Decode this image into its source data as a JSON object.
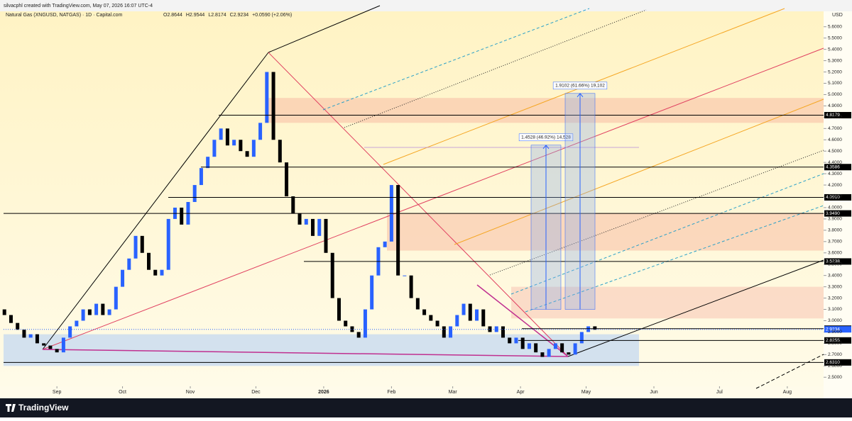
{
  "chart_data": {
    "type": "candlestick",
    "credit": "silvacphl created with TradingView.com, May 07, 2026 16:07 UTC-4",
    "title": "Natural Gas (XNGUSD, NATGAS) · 1D · Capital.com",
    "ohlc_header": [
      "O2.8644",
      "H2.9544",
      "L2.8174",
      "C2.9234",
      "+0.0590 (+2.06%)"
    ],
    "currency": "USD",
    "brand": "TradingView",
    "x": [
      -24,
      -21,
      -18,
      -15,
      -12,
      -9,
      -6,
      -3,
      0,
      3,
      6,
      9,
      12,
      15,
      18,
      21,
      24,
      27,
      30,
      33,
      36,
      39,
      42,
      45,
      48,
      51,
      54,
      57,
      60,
      63,
      66,
      69,
      72,
      75,
      78,
      81,
      84,
      87,
      90,
      93,
      96,
      99,
      102,
      105,
      108,
      111,
      114,
      117,
      120,
      123,
      126,
      129,
      132,
      135,
      138,
      141,
      144,
      147,
      150,
      153,
      156,
      159,
      162,
      165,
      168,
      171,
      174,
      177,
      180,
      183,
      186,
      189,
      192,
      195,
      198,
      201,
      204,
      207,
      210,
      213,
      216,
      219,
      222,
      225,
      228,
      231,
      234,
      237,
      240,
      243,
      246
    ],
    "open": [
      3.1,
      3.05,
      2.98,
      2.92,
      2.85,
      2.88,
      2.8,
      2.78,
      2.75,
      2.72,
      2.85,
      2.95,
      3.0,
      3.1,
      3.05,
      3.15,
      3.05,
      3.1,
      3.3,
      3.45,
      3.55,
      3.75,
      3.6,
      3.45,
      3.4,
      3.45,
      3.9,
      4.0,
      3.85,
      4.05,
      4.2,
      4.35,
      4.45,
      4.6,
      4.7,
      4.55,
      4.6,
      4.5,
      4.45,
      4.6,
      4.75,
      5.2,
      4.6,
      4.4,
      4.1,
      3.95,
      3.85,
      3.9,
      3.75,
      3.9,
      3.6,
      3.2,
      3.0,
      2.95,
      2.9,
      2.85,
      3.1,
      3.4,
      3.65,
      3.7,
      4.2,
      3.4,
      3.4,
      3.2,
      3.1,
      3.05,
      3.0,
      2.95,
      2.85,
      2.95,
      3.05,
      3.15,
      3.0,
      3.1,
      2.95,
      2.9,
      2.95,
      2.85,
      2.8,
      2.85,
      2.75,
      2.8,
      2.72,
      2.68,
      2.75,
      2.8,
      2.72,
      2.7,
      2.8,
      2.9,
      2.95
    ],
    "close": [
      3.05,
      2.98,
      2.92,
      2.85,
      2.88,
      2.8,
      2.78,
      2.75,
      2.72,
      2.85,
      2.95,
      3.0,
      3.1,
      3.05,
      3.15,
      3.05,
      3.1,
      3.3,
      3.45,
      3.55,
      3.75,
      3.6,
      3.45,
      3.4,
      3.45,
      3.9,
      4.0,
      3.85,
      4.05,
      4.2,
      4.35,
      4.45,
      4.6,
      4.7,
      4.55,
      4.6,
      4.5,
      4.45,
      4.6,
      4.75,
      5.2,
      4.6,
      4.4,
      4.1,
      3.95,
      3.85,
      3.9,
      3.75,
      3.9,
      3.6,
      3.2,
      3.0,
      2.95,
      2.9,
      2.85,
      3.1,
      3.4,
      3.65,
      3.7,
      4.2,
      3.4,
      3.4,
      3.2,
      3.1,
      3.05,
      3.0,
      2.95,
      2.85,
      2.95,
      3.05,
      3.15,
      3.0,
      3.1,
      2.95,
      2.9,
      2.95,
      2.85,
      2.8,
      2.85,
      2.75,
      2.8,
      2.72,
      2.68,
      2.75,
      2.8,
      2.72,
      2.7,
      2.8,
      2.9,
      2.95,
      2.92
    ],
    "up_color": "#2962ff",
    "down_color": "#000000",
    "xlim": [
      -24.4,
      350.6
    ],
    "xticks": [
      {
        "value": 0,
        "label": "Sep"
      },
      {
        "value": 30,
        "label": "Oct"
      },
      {
        "value": 61,
        "label": "Nov"
      },
      {
        "value": 91,
        "label": "Dec"
      },
      {
        "value": 122,
        "label": "2026"
      },
      {
        "value": 153,
        "label": "Feb"
      },
      {
        "value": 181,
        "label": "Mar"
      },
      {
        "value": 212,
        "label": "Apr"
      },
      {
        "value": 242,
        "label": "May"
      },
      {
        "value": 273,
        "label": "Jun"
      },
      {
        "value": 303,
        "label": "Jul"
      },
      {
        "value": 334,
        "label": "Aug"
      }
    ],
    "ylim": [
      2.42,
      5.73
    ],
    "yticks": [
      {
        "value": 2.5,
        "label": "2.5000"
      },
      {
        "value": 2.6,
        "label": "2.6000"
      },
      {
        "value": 2.7,
        "label": "2.7000"
      },
      {
        "value": 2.8,
        "label": "2.8000"
      },
      {
        "value": 2.9,
        "label": "2.9000"
      },
      {
        "value": 3.0,
        "label": "3.0000"
      },
      {
        "value": 3.1,
        "label": "3.1000"
      },
      {
        "value": 3.2,
        "label": "3.2000"
      },
      {
        "value": 3.3,
        "label": "3.3000"
      },
      {
        "value": 3.4,
        "label": "3.4000"
      },
      {
        "value": 3.5,
        "label": "3.5000"
      },
      {
        "value": 3.6,
        "label": "3.6000"
      },
      {
        "value": 3.7,
        "label": "3.7000"
      },
      {
        "value": 3.8,
        "label": "3.8000"
      },
      {
        "value": 3.9,
        "label": "3.9000"
      },
      {
        "value": 4.0,
        "label": "4.0000"
      },
      {
        "value": 4.1,
        "label": "4.1000"
      },
      {
        "value": 4.2,
        "label": "4.2000"
      },
      {
        "value": 4.3,
        "label": "4.3000"
      },
      {
        "value": 4.4,
        "label": "4.4000"
      },
      {
        "value": 4.5,
        "label": "4.5000"
      },
      {
        "value": 4.6,
        "label": "4.6000"
      },
      {
        "value": 4.7,
        "label": "4.7000"
      },
      {
        "value": 4.8,
        "label": "4.8000"
      },
      {
        "value": 4.9,
        "label": "4.9000"
      },
      {
        "value": 5.0,
        "label": "5.0000"
      },
      {
        "value": 5.1,
        "label": "5.1000"
      },
      {
        "value": 5.2,
        "label": "5.2000"
      },
      {
        "value": 5.3,
        "label": "5.3000"
      },
      {
        "value": 5.4,
        "label": "5.4000"
      },
      {
        "value": 5.5,
        "label": "5.5000"
      },
      {
        "value": 5.6,
        "label": "5.6000"
      }
    ],
    "levels": [
      4.8179,
      4.3586,
      {
        "value": 4.091,
        "label": "4.0910"
      },
      {
        "value": 3.949,
        "label": "3.9490"
      },
      3.5238,
      2.9296,
      2.8255,
      {
        "value": 2.631,
        "label": "2.6310"
      }
    ],
    "last_price": 2.9234,
    "zones": [
      [
        4.75,
        4.97
      ],
      [
        3.62,
        3.95
      ],
      [
        3.02,
        3.3
      ],
      [
        2.6,
        2.88
      ]
    ],
    "measures": [
      {
        "from": 3.1,
        "to": 4.5528,
        "label": "1.4528 (46.92%) 14,528"
      },
      {
        "from": 3.1,
        "to": 5.0102,
        "label": "1.9102 (61.66%) 19,102"
      }
    ]
  }
}
